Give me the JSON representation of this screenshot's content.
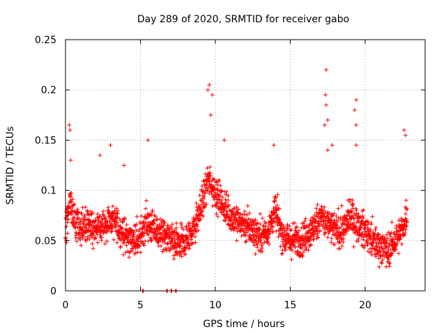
{
  "chart_data": {
    "type": "scatter",
    "title": "Day 289 of 2020, SRMTID for receiver gabo",
    "xlabel": "GPS time / hours",
    "ylabel": "SRMTID / TECUs",
    "xlim": [
      0,
      24
    ],
    "ylim": [
      0,
      0.25
    ],
    "x_ticks": [
      0,
      5,
      10,
      15,
      20
    ],
    "x_tick_labels": [
      "0",
      "5",
      "10",
      "15",
      "20"
    ],
    "y_ticks": [
      0,
      0.05,
      0.1,
      0.15,
      0.2,
      0.25
    ],
    "y_tick_labels": [
      "0",
      "0.05",
      "0.1",
      "0.15",
      "0.2",
      "0.25"
    ],
    "grid": true,
    "marker": "+",
    "color": "#ff0000",
    "series": [
      {
        "name": "SRMTID",
        "trend": {
          "x": [
            0.0,
            0.3,
            0.6,
            1.0,
            1.5,
            2.0,
            2.5,
            3.0,
            3.5,
            4.0,
            4.5,
            5.0,
            5.3,
            5.6,
            6.0,
            6.5,
            7.0,
            7.5,
            8.0,
            8.5,
            9.0,
            9.5,
            10.0,
            10.5,
            11.0,
            11.5,
            12.0,
            12.5,
            13.0,
            13.5,
            14.0,
            14.5,
            15.0,
            15.5,
            16.0,
            16.5,
            17.0,
            17.5,
            18.0,
            18.5,
            19.0,
            19.5,
            20.0,
            20.5,
            21.0,
            21.5,
            22.0,
            22.5,
            22.8
          ],
          "y": [
            0.06,
            0.09,
            0.07,
            0.06,
            0.065,
            0.06,
            0.065,
            0.07,
            0.065,
            0.055,
            0.05,
            0.05,
            0.07,
            0.065,
            0.06,
            0.055,
            0.05,
            0.045,
            0.05,
            0.06,
            0.08,
            0.11,
            0.1,
            0.085,
            0.075,
            0.07,
            0.065,
            0.06,
            0.055,
            0.06,
            0.08,
            0.055,
            0.05,
            0.05,
            0.055,
            0.06,
            0.075,
            0.065,
            0.06,
            0.06,
            0.075,
            0.065,
            0.06,
            0.05,
            0.045,
            0.04,
            0.05,
            0.06,
            0.08
          ]
        },
        "spread": 0.022,
        "n_points": 2200,
        "spikes": [
          {
            "x": 0.25,
            "y": 0.165
          },
          {
            "x": 0.3,
            "y": 0.16
          },
          {
            "x": 0.35,
            "y": 0.13
          },
          {
            "x": 2.3,
            "y": 0.135
          },
          {
            "x": 3.0,
            "y": 0.145
          },
          {
            "x": 3.9,
            "y": 0.125
          },
          {
            "x": 5.5,
            "y": 0.15
          },
          {
            "x": 9.5,
            "y": 0.2
          },
          {
            "x": 9.6,
            "y": 0.205
          },
          {
            "x": 9.8,
            "y": 0.195
          },
          {
            "x": 9.7,
            "y": 0.175
          },
          {
            "x": 10.6,
            "y": 0.15
          },
          {
            "x": 13.9,
            "y": 0.145
          },
          {
            "x": 17.4,
            "y": 0.22
          },
          {
            "x": 17.35,
            "y": 0.195
          },
          {
            "x": 17.4,
            "y": 0.185
          },
          {
            "x": 17.5,
            "y": 0.17
          },
          {
            "x": 17.3,
            "y": 0.165
          },
          {
            "x": 17.8,
            "y": 0.145
          },
          {
            "x": 17.5,
            "y": 0.14
          },
          {
            "x": 19.4,
            "y": 0.19
          },
          {
            "x": 19.3,
            "y": 0.18
          },
          {
            "x": 19.4,
            "y": 0.165
          },
          {
            "x": 19.4,
            "y": 0.145
          },
          {
            "x": 22.6,
            "y": 0.16
          },
          {
            "x": 22.7,
            "y": 0.155
          }
        ],
        "zero_points": [
          5.15,
          6.75,
          7.05,
          7.35
        ]
      }
    ]
  }
}
